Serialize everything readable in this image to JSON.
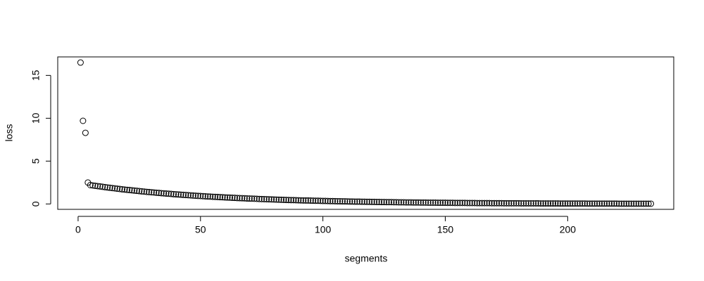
{
  "chart_data": {
    "type": "scatter",
    "x_label": "segments",
    "y_label": "loss",
    "xlim": [
      -8.32,
      243.32
    ],
    "ylim": [
      -0.63,
      17.16
    ],
    "xticks": [
      0,
      50,
      100,
      150,
      200
    ],
    "yticks": [
      0,
      5,
      10,
      15
    ],
    "grid": false,
    "color": "#000000",
    "series": [
      {
        "x": [
          1,
          2,
          3,
          4,
          5,
          6,
          7,
          8,
          9,
          10,
          11,
          12,
          13,
          14,
          15,
          16,
          17,
          18,
          19,
          20,
          21,
          22,
          23,
          24,
          25,
          26,
          27,
          28,
          29,
          30,
          31,
          32,
          33,
          34,
          35,
          36,
          37,
          38,
          39,
          40,
          41,
          42,
          43,
          44,
          45,
          46,
          47,
          48,
          49,
          50,
          51,
          52,
          53,
          54,
          55,
          56,
          57,
          58,
          59,
          60,
          61,
          62,
          63,
          64,
          65,
          66,
          67,
          68,
          69,
          70,
          71,
          72,
          73,
          74,
          75,
          76,
          77,
          78,
          79,
          80,
          81,
          82,
          83,
          84,
          85,
          86,
          87,
          88,
          89,
          90,
          91,
          92,
          93,
          94,
          95,
          96,
          97,
          98,
          99,
          100,
          101,
          102,
          103,
          104,
          105,
          106,
          107,
          108,
          109,
          110,
          111,
          112,
          113,
          114,
          115,
          116,
          117,
          118,
          119,
          120,
          121,
          122,
          123,
          124,
          125,
          126,
          127,
          128,
          129,
          130,
          131,
          132,
          133,
          134,
          135,
          136,
          137,
          138,
          139,
          140,
          141,
          142,
          143,
          144,
          145,
          146,
          147,
          148,
          149,
          150,
          151,
          152,
          153,
          154,
          155,
          156,
          157,
          158,
          159,
          160,
          161,
          162,
          163,
          164,
          165,
          166,
          167,
          168,
          169,
          170,
          171,
          172,
          173,
          174,
          175,
          176,
          177,
          178,
          179,
          180,
          181,
          182,
          183,
          184,
          185,
          186,
          187,
          188,
          189,
          190,
          191,
          192,
          193,
          194,
          195,
          196,
          197,
          198,
          199,
          200,
          201,
          202,
          203,
          204,
          205,
          206,
          207,
          208,
          209,
          210,
          211,
          212,
          213,
          214,
          215,
          216,
          217,
          218,
          219,
          220,
          221,
          222,
          223,
          224,
          225,
          226,
          227,
          228,
          229,
          230,
          231,
          232,
          233,
          234
        ],
        "values": [
          16.5,
          9.7,
          8.3,
          2.5,
          2.2,
          2.16,
          2.12,
          2.08,
          2.04,
          2.0,
          1.96,
          1.92,
          1.89,
          1.85,
          1.82,
          1.78,
          1.75,
          1.71,
          1.68,
          1.65,
          1.62,
          1.59,
          1.56,
          1.53,
          1.5,
          1.47,
          1.44,
          1.41,
          1.39,
          1.36,
          1.34,
          1.31,
          1.29,
          1.26,
          1.24,
          1.21,
          1.19,
          1.17,
          1.14,
          1.12,
          1.1,
          1.08,
          1.06,
          1.04,
          1.02,
          1.0,
          0.98,
          0.96,
          0.94,
          0.93,
          0.91,
          0.89,
          0.87,
          0.86,
          0.84,
          0.83,
          0.81,
          0.79,
          0.78,
          0.76,
          0.75,
          0.74,
          0.72,
          0.71,
          0.69,
          0.68,
          0.67,
          0.66,
          0.64,
          0.63,
          0.62,
          0.61,
          0.6,
          0.58,
          0.57,
          0.56,
          0.55,
          0.54,
          0.53,
          0.52,
          0.51,
          0.5,
          0.49,
          0.48,
          0.47,
          0.46,
          0.45,
          0.45,
          0.44,
          0.43,
          0.42,
          0.41,
          0.4,
          0.4,
          0.39,
          0.38,
          0.37,
          0.37,
          0.36,
          0.35,
          0.35,
          0.34,
          0.33,
          0.33,
          0.32,
          0.31,
          0.31,
          0.3,
          0.3,
          0.29,
          0.28,
          0.28,
          0.27,
          0.27,
          0.27,
          0.26,
          0.26,
          0.25,
          0.25,
          0.24,
          0.24,
          0.23,
          0.23,
          0.22,
          0.22,
          0.21,
          0.21,
          0.21,
          0.2,
          0.2,
          0.19,
          0.19,
          0.19,
          0.18,
          0.18,
          0.18,
          0.17,
          0.17,
          0.17,
          0.16,
          0.16,
          0.16,
          0.15,
          0.15,
          0.15,
          0.15,
          0.14,
          0.14,
          0.14,
          0.14,
          0.13,
          0.13,
          0.13,
          0.12,
          0.12,
          0.12,
          0.12,
          0.12,
          0.11,
          0.11,
          0.11,
          0.11,
          0.1,
          0.1,
          0.1,
          0.1,
          0.1,
          0.1,
          0.09,
          0.09,
          0.09,
          0.09,
          0.09,
          0.08,
          0.08,
          0.08,
          0.08,
          0.08,
          0.08,
          0.08,
          0.07,
          0.07,
          0.07,
          0.07,
          0.07,
          0.07,
          0.07,
          0.07,
          0.06,
          0.06,
          0.06,
          0.06,
          0.06,
          0.06,
          0.06,
          0.06,
          0.05,
          0.05,
          0.05,
          0.05,
          0.05,
          0.05,
          0.05,
          0.05,
          0.05,
          0.05,
          0.05,
          0.04,
          0.04,
          0.04,
          0.04,
          0.04,
          0.04,
          0.04,
          0.04,
          0.04,
          0.04,
          0.04,
          0.04,
          0.04,
          0.03,
          0.03,
          0.03,
          0.03,
          0.03,
          0.03,
          0.03,
          0.03,
          0.03,
          0.03,
          0.03,
          0.03,
          0.03,
          0.03
        ]
      }
    ]
  }
}
